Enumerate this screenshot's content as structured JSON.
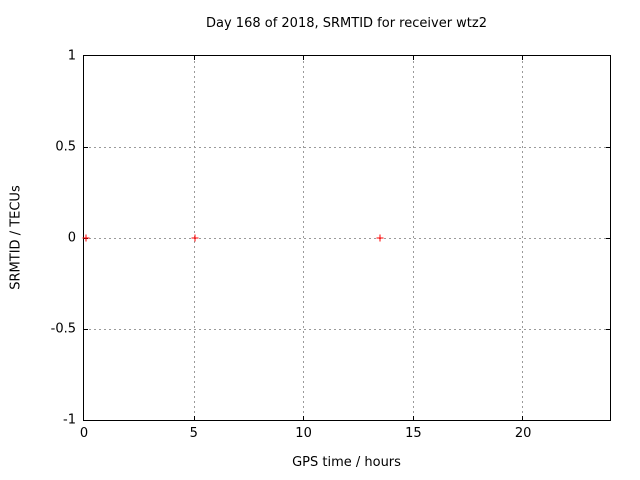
{
  "colors": {
    "marker": "#ff0000",
    "grid": "#9a9a9a",
    "axis": "#000000",
    "background": "#ffffff",
    "text": "#000000"
  },
  "chart_data": {
    "type": "scatter",
    "title": "Day 168 of 2018, SRMTID for receiver wtz2",
    "xlabel": "GPS time / hours",
    "ylabel": "SRMTID / TECUs",
    "xlim": [
      0,
      24
    ],
    "ylim": [
      -1,
      1
    ],
    "x_ticks": [
      0,
      5,
      10,
      15,
      20
    ],
    "y_ticks": [
      1,
      0.5,
      0,
      -0.5,
      -1
    ],
    "grid": true,
    "legend": false,
    "marker_glyph": "plus",
    "series": [
      {
        "name": "SRMTID",
        "points": [
          {
            "x": 0.1,
            "y": 0
          },
          {
            "x": 5.05,
            "y": 0
          },
          {
            "x": 13.5,
            "y": 0
          }
        ]
      }
    ]
  }
}
